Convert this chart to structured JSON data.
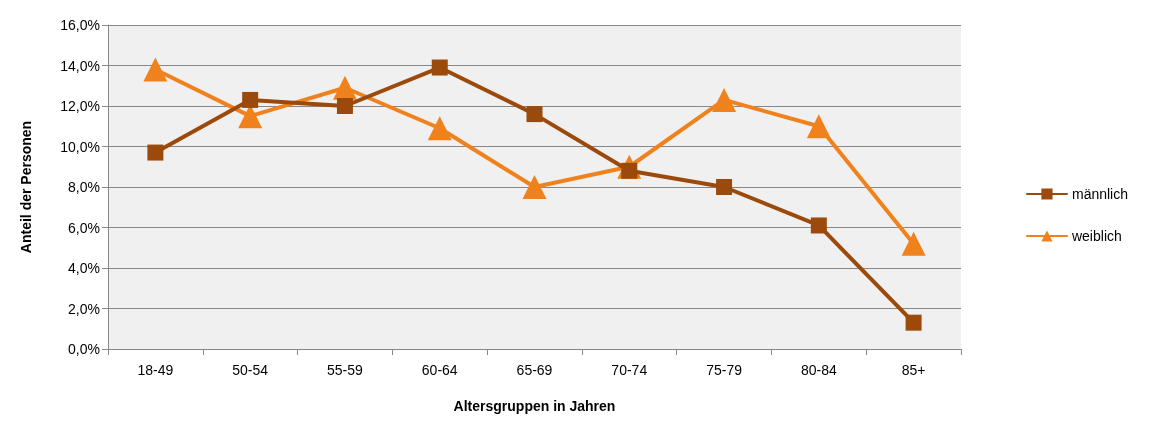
{
  "chart_data": {
    "type": "line",
    "xlabel": "Altersgruppen in Jahren",
    "ylabel": "Anteil der Personen",
    "categories": [
      "18-49",
      "50-54",
      "55-59",
      "60-64",
      "65-69",
      "70-74",
      "75-79",
      "80-84",
      "85+"
    ],
    "series": [
      {
        "name": "männlich",
        "color": "#9b4a0c",
        "marker": "square",
        "values": [
          9.7,
          12.3,
          12.0,
          13.9,
          11.6,
          8.8,
          8.0,
          6.1,
          1.3
        ]
      },
      {
        "name": "weiblich",
        "color": "#f0821e",
        "marker": "triangle",
        "values": [
          13.8,
          11.5,
          12.9,
          10.9,
          8.0,
          9.0,
          12.3,
          11.0,
          5.2
        ]
      }
    ],
    "ylim": [
      0,
      16
    ],
    "yticks": [
      {
        "value": 0,
        "label": "0,0%"
      },
      {
        "value": 2,
        "label": "2,0%"
      },
      {
        "value": 4,
        "label": "4,0%"
      },
      {
        "value": 6,
        "label": "6,0%"
      },
      {
        "value": 8,
        "label": "8,0%"
      },
      {
        "value": 10,
        "label": "10,0%"
      },
      {
        "value": 12,
        "label": "12,0%"
      },
      {
        "value": 14,
        "label": "14,0%"
      },
      {
        "value": 16,
        "label": "16,0%"
      }
    ],
    "grid": "y",
    "legend": "right",
    "line_style": "solid"
  }
}
